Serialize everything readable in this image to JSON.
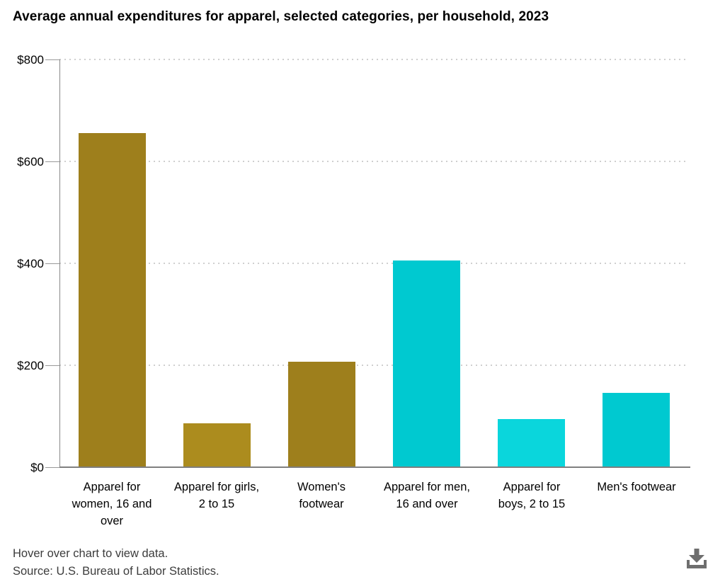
{
  "title": "Average annual expenditures for apparel, selected categories, per household, 2023",
  "footer": {
    "hover_note": "Hover over chart to view data.",
    "source": "Source: U.S. Bureau of Labor Statistics."
  },
  "colors": {
    "gold": "#9E7F1C",
    "gold_light": "#AC8C1E",
    "cyan": "#00C9D0",
    "cyan_light": "#0AD6DC",
    "axis_line": "#888888",
    "baseline": "#7F7F7F",
    "gridline": "#CFCFCF",
    "tick": "#999999",
    "text": "#000000",
    "footer_text": "#3C3C3C",
    "icon": "#6E6E6E"
  },
  "chart_data": {
    "type": "bar",
    "title": "Average annual expenditures for apparel, selected categories, per household, 2023",
    "categories": [
      "Apparel for women, 16 and over",
      "Apparel for girls, 2 to 15",
      "Women's footwear",
      "Apparel for men, 16 and over",
      "Apparel for boys, 2 to 15",
      "Men's footwear"
    ],
    "label_lines": [
      [
        "Apparel for",
        "women, 16 and",
        "over"
      ],
      [
        "Apparel for girls,",
        "2 to 15"
      ],
      [
        "Women's",
        "footwear"
      ],
      [
        "Apparel for men,",
        "16 and over"
      ],
      [
        "Apparel for",
        "boys, 2 to 15"
      ],
      [
        "Men's footwear"
      ]
    ],
    "values": [
      655,
      86,
      207,
      406,
      94,
      146
    ],
    "bar_colors": [
      "#9E7F1C",
      "#AC8C1E",
      "#9E7F1C",
      "#00C9D0",
      "#0AD6DC",
      "#00C9D0"
    ],
    "xlabel": "",
    "ylabel": "",
    "ylim": [
      0,
      800
    ],
    "yticks": [
      0,
      200,
      400,
      600,
      800
    ],
    "ytick_labels": [
      "$0",
      "$200",
      "$400",
      "$600",
      "$800"
    ],
    "grid": "horizontal-dotted",
    "legend": "none"
  }
}
